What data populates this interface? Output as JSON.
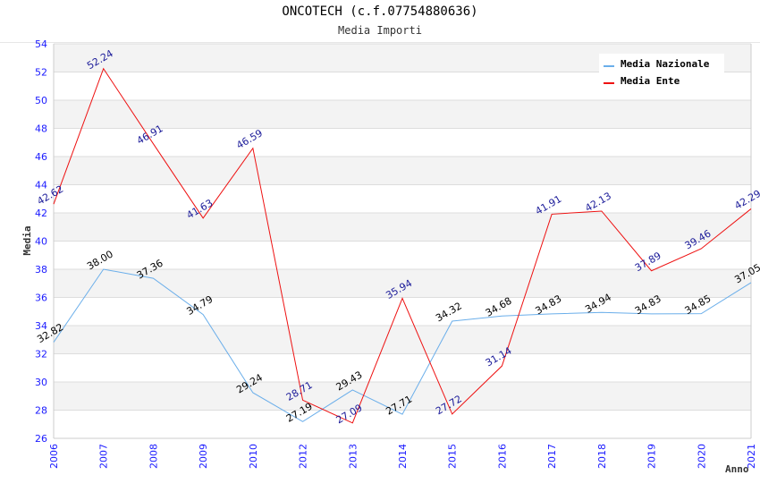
{
  "chart_data": {
    "type": "line",
    "title": "ONCOTECH (c.f.07754880636)",
    "subtitle": "Media Importi",
    "xlabel": "Anno",
    "ylabel": "Media",
    "ylim": [
      26,
      54
    ],
    "yticks": [
      "26",
      "28",
      "30",
      "32",
      "34",
      "36",
      "38",
      "40",
      "42",
      "44",
      "46",
      "48",
      "50",
      "52",
      "54"
    ],
    "categories": [
      "2006",
      "2007",
      "2008",
      "2009",
      "2010",
      "2012",
      "2013",
      "2014",
      "2015",
      "2016",
      "2017",
      "2018",
      "2019",
      "2020",
      "2021"
    ],
    "grid": true,
    "legend_position": "top-right",
    "series": [
      {
        "name": "Media Nazionale",
        "color": "#6aaeea",
        "values": [
          32.82,
          38.0,
          37.36,
          34.79,
          29.24,
          27.19,
          29.43,
          27.71,
          34.32,
          34.68,
          34.83,
          34.94,
          34.83,
          34.85,
          37.05
        ],
        "labels": [
          "32.82",
          "38.00",
          "37.36",
          "34.79",
          "29.24",
          "27.19",
          "29.43",
          "27.71",
          "34.32",
          "34.68",
          "34.83",
          "34.94",
          "34.83",
          "34.85",
          "37.05"
        ]
      },
      {
        "name": "Media Ente",
        "color": "#ee1111",
        "values": [
          42.62,
          52.24,
          46.91,
          41.63,
          46.59,
          28.71,
          27.09,
          35.94,
          27.72,
          31.14,
          41.91,
          42.13,
          37.89,
          39.46,
          42.29
        ],
        "labels": [
          "42.62",
          "52.24",
          "46.91",
          "41.63",
          "46.59",
          "28.71",
          "27.09",
          "35.94",
          "27.72",
          "31.14",
          "41.91",
          "42.13",
          "37.89",
          "39.46",
          "42.29"
        ]
      }
    ]
  }
}
